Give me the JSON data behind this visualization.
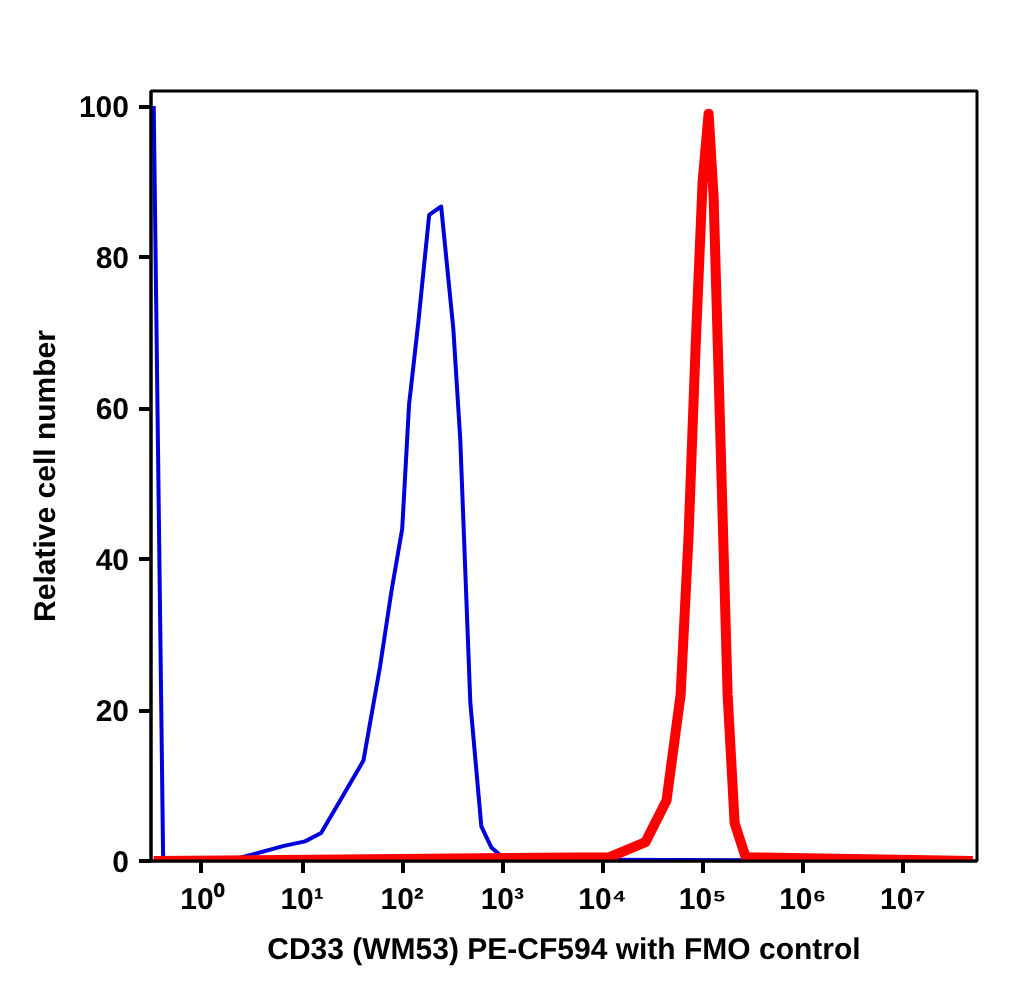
{
  "chart_data": {
    "type": "line",
    "xlabel": "CD33 (WM53) PE-CF594 with FMO control",
    "ylabel": "Relative cell number",
    "log": "x",
    "xlim": [
      0.31,
      55000000
    ],
    "ylim": [
      0,
      102
    ],
    "xticks": [
      {
        "value": 1,
        "label": "10⁰"
      },
      {
        "value": 10,
        "label": "10¹"
      },
      {
        "value": 100,
        "label": "10²"
      },
      {
        "value": 1000,
        "label": "10³"
      },
      {
        "value": 10000,
        "label": "10⁴"
      },
      {
        "value": 100000,
        "label": "10⁵"
      },
      {
        "value": 1000000,
        "label": "10⁶"
      },
      {
        "value": 10000000,
        "label": "10⁷"
      }
    ],
    "yticks": [
      0,
      20,
      40,
      60,
      80,
      100
    ],
    "grid": false,
    "marker": "none",
    "line_style": "solid",
    "series": [
      {
        "color": "#0000dd",
        "x": [
          0.33,
          0.41,
          1.8,
          3.7,
          6.6,
          10.7,
          15.5,
          24.5,
          41,
          60,
          78,
          100,
          117,
          145,
          186,
          245,
          324,
          380,
          479,
          617,
          776,
          1070,
          50000000
        ],
        "values": [
          100,
          0,
          0,
          1.1,
          2.0,
          2.6,
          3.7,
          8.2,
          13.3,
          25.7,
          35.7,
          44,
          60.4,
          71.4,
          85.6,
          86.7,
          70.5,
          55.9,
          21,
          4.6,
          1.8,
          0.2,
          0
        ]
      },
      {
        "color": "#ff0000",
        "x": [
          0.33,
          11750,
          26900,
          43600,
          60300,
          72400,
          85100,
          100000,
          114800,
          128800,
          151400,
          177800,
          208900,
          269200,
          50000000
        ],
        "values": [
          0,
          0.5,
          2.5,
          8,
          22,
          43,
          68,
          90,
          99,
          88,
          55,
          22,
          5,
          0.5,
          0
        ]
      }
    ]
  }
}
